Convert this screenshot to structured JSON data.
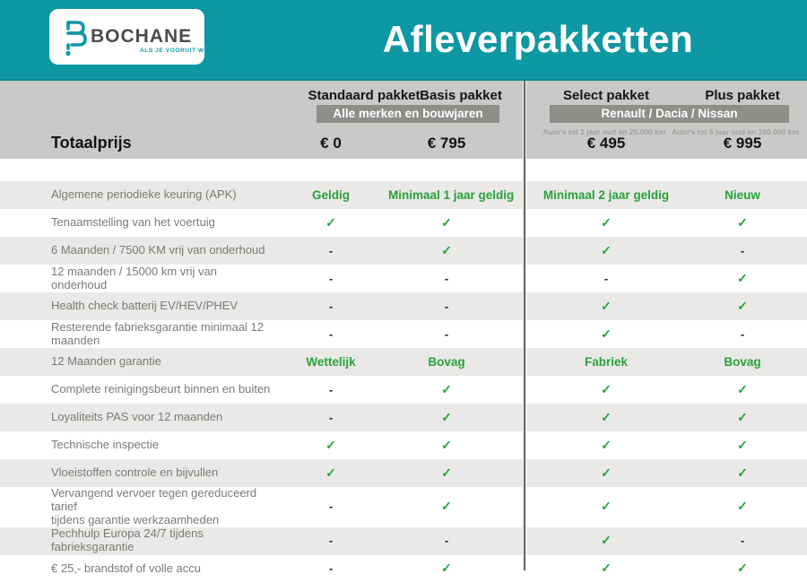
{
  "header": {
    "brand": "BOCHANE",
    "tagline": "ALS JE VOORUIT WIL",
    "title": "Afleverpakketten"
  },
  "columns": [
    {
      "name": "Standaard pakket"
    },
    {
      "name": "Basis pakket"
    },
    {
      "name": "Select pakket"
    },
    {
      "name": "Plus pakket"
    }
  ],
  "groups": [
    {
      "banner": "Alle merken en bouwjaren",
      "captions": []
    },
    {
      "banner": "Renault / Dacia / Nissan",
      "captions": [
        "Auto's tot 1 jaar oud en 20.000 km",
        "Auto's tot 5 jaar oud en 100.000 km"
      ]
    }
  ],
  "totals": {
    "label": "Totaalprijs",
    "prices": [
      "€ 0",
      "€ 795",
      "€ 495",
      "€ 995"
    ]
  },
  "glyphs": {
    "check": "✓",
    "dash": "-"
  },
  "table": {
    "rows": [
      {
        "label": "Algemene periodieke keuring (APK)",
        "values": [
          "Geldig",
          "Minimaal 1 jaar geldig",
          "Minimaal 2 jaar geldig",
          "Nieuw"
        ]
      },
      {
        "label": "Tenaamstelling van het voertuig",
        "values": [
          "check",
          "check",
          "check",
          "check"
        ]
      },
      {
        "label": "6 Maanden / 7500 KM vrij van onderhoud",
        "values": [
          "-",
          "check",
          "check",
          "-"
        ]
      },
      {
        "label": "12 maanden / 15000 km vrij van onderhoud",
        "values": [
          "-",
          "-",
          "-",
          "check"
        ]
      },
      {
        "label": "Health check batterij EV/HEV/PHEV",
        "values": [
          "-",
          "-",
          "check",
          "check"
        ]
      },
      {
        "label": "Resterende fabrieksgarantie minimaal 12 maanden",
        "values": [
          "-",
          "-",
          "check",
          "-"
        ]
      },
      {
        "label": "12 Maanden  garantie",
        "values": [
          "Wettelijk",
          "Bovag",
          "Fabriek",
          "Bovag"
        ]
      },
      {
        "label": "Complete reinigingsbeurt binnen en buiten",
        "values": [
          "-",
          "check",
          "check",
          "check"
        ]
      },
      {
        "label": "Loyaliteits PAS voor 12 maanden",
        "values": [
          "-",
          "check",
          "check",
          "check"
        ]
      },
      {
        "label": "Technische inspectie",
        "values": [
          "check",
          "check",
          "check",
          "check"
        ]
      },
      {
        "label": "Vloeistoffen controle en bijvullen",
        "values": [
          "check",
          "check",
          "check",
          "check"
        ]
      },
      {
        "label": "Vervangend vervoer tegen gereduceerd tarief\ntijdens garantie werkzaamheden",
        "values": [
          "-",
          "check",
          "check",
          "check"
        ]
      },
      {
        "label": "Pechhulp Europa 24/7 tijdens fabrieksgarantie",
        "values": [
          "-",
          "-",
          "check",
          "-"
        ]
      },
      {
        "label": "€ 25,- brandstof of  volle accu",
        "values": [
          "-",
          "check",
          "check",
          "check"
        ]
      }
    ]
  },
  "colors": {
    "teal": "#0e98a3",
    "header_band": "#cac9c7",
    "banner_gray": "#8f8e8b",
    "row_shade": "#eae9e7",
    "green": "#27a23a",
    "label_gray": "#7b7a76"
  }
}
